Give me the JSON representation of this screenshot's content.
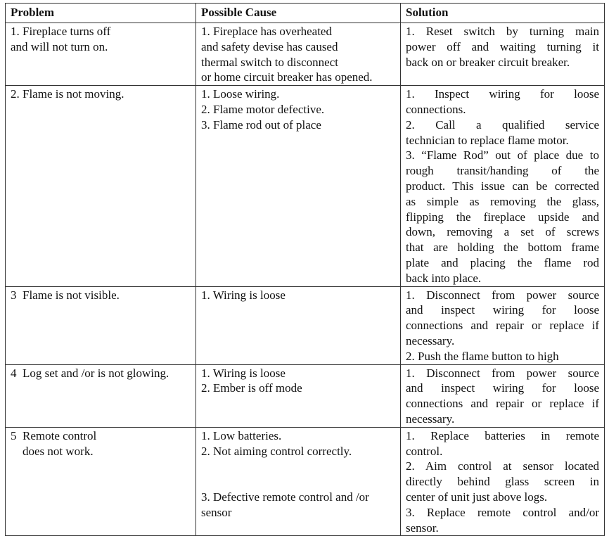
{
  "headers": [
    "Problem",
    "Possible Cause",
    "Solution"
  ],
  "rows": [
    {
      "problem": [
        "1. Fireplace turns off",
        "and will not turn on."
      ],
      "cause": [
        "1. Fireplace has overheated",
        "and safety devise has caused",
        "thermal switch to disconnect",
        "or home circuit breaker has opened."
      ],
      "solution": [
        {
          "t": "1. Reset switch by turning main",
          "j": true
        },
        {
          "t": "power off and waiting turning it",
          "j": true
        },
        {
          "t": "back on or breaker circuit breaker.",
          "j": false
        }
      ]
    },
    {
      "problem": [
        "2. Flame is not moving."
      ],
      "cause": [
        "1. Loose wiring.",
        "2. Flame motor defective.",
        "3. Flame rod out of place"
      ],
      "solution": [
        {
          "t": "1. Inspect wiring for loose",
          "j": true
        },
        {
          "t": "connections.",
          "j": false
        },
        {
          "t": "2. Call a qualified service",
          "j": true
        },
        {
          "t": "technician to replace flame motor.",
          "j": false
        },
        {
          "t": "3. “Flame Rod” out of place  due to",
          "j": true
        },
        {
          "t": "rough transit/handing of the",
          "j": true
        },
        {
          "t": "product. This issue can be corrected",
          "j": true
        },
        {
          "t": "as simple as removing the glass,",
          "j": true
        },
        {
          "t": "flipping the fireplace upside and",
          "j": true
        },
        {
          "t": "down, removing a set of screws",
          "j": true
        },
        {
          "t": "that are holding the bottom frame",
          "j": true
        },
        {
          "t": "plate and placing the flame rod",
          "j": true
        },
        {
          "t": "back into place.",
          "j": false
        }
      ]
    },
    {
      "problem": [
        "3  Flame is not visible."
      ],
      "cause": [
        "1. Wiring is loose"
      ],
      "solution": [
        {
          "t": "1. Disconnect from power source",
          "j": true
        },
        {
          "t": "and inspect wiring for loose",
          "j": true
        },
        {
          "t": "connections and repair or replace if",
          "j": true
        },
        {
          "t": "necessary.",
          "j": false
        },
        {
          "t": "2. Push the flame button to high",
          "j": false
        }
      ]
    },
    {
      "problem": [
        "4  Log set and /or is not glowing."
      ],
      "cause": [
        "1. Wiring is loose",
        "2. Ember is off mode"
      ],
      "solution": [
        {
          "t": "1. Disconnect from power source",
          "j": true
        },
        {
          "t": "and inspect wiring for loose",
          "j": true
        },
        {
          "t": "connections and repair or replace if",
          "j": true
        },
        {
          "t": "necessary.",
          "j": false
        }
      ]
    },
    {
      "problem": [
        "5  Remote control",
        "    does not work."
      ],
      "cause": [
        "1. Low batteries.",
        "2. Not aiming control correctly.",
        "",
        "",
        "3. Defective remote control and /or",
        "sensor"
      ],
      "solution": [
        {
          "t": "1. Replace batteries in remote",
          "j": true
        },
        {
          "t": "control.",
          "j": false
        },
        {
          "t": "2. Aim control at sensor located",
          "j": true
        },
        {
          "t": "directly behind glass screen in",
          "j": true
        },
        {
          "t": "center of unit just above logs.",
          "j": false
        },
        {
          "t": "3. Replace remote control and/or",
          "j": true
        },
        {
          "t": "sensor.",
          "j": false
        }
      ]
    }
  ]
}
